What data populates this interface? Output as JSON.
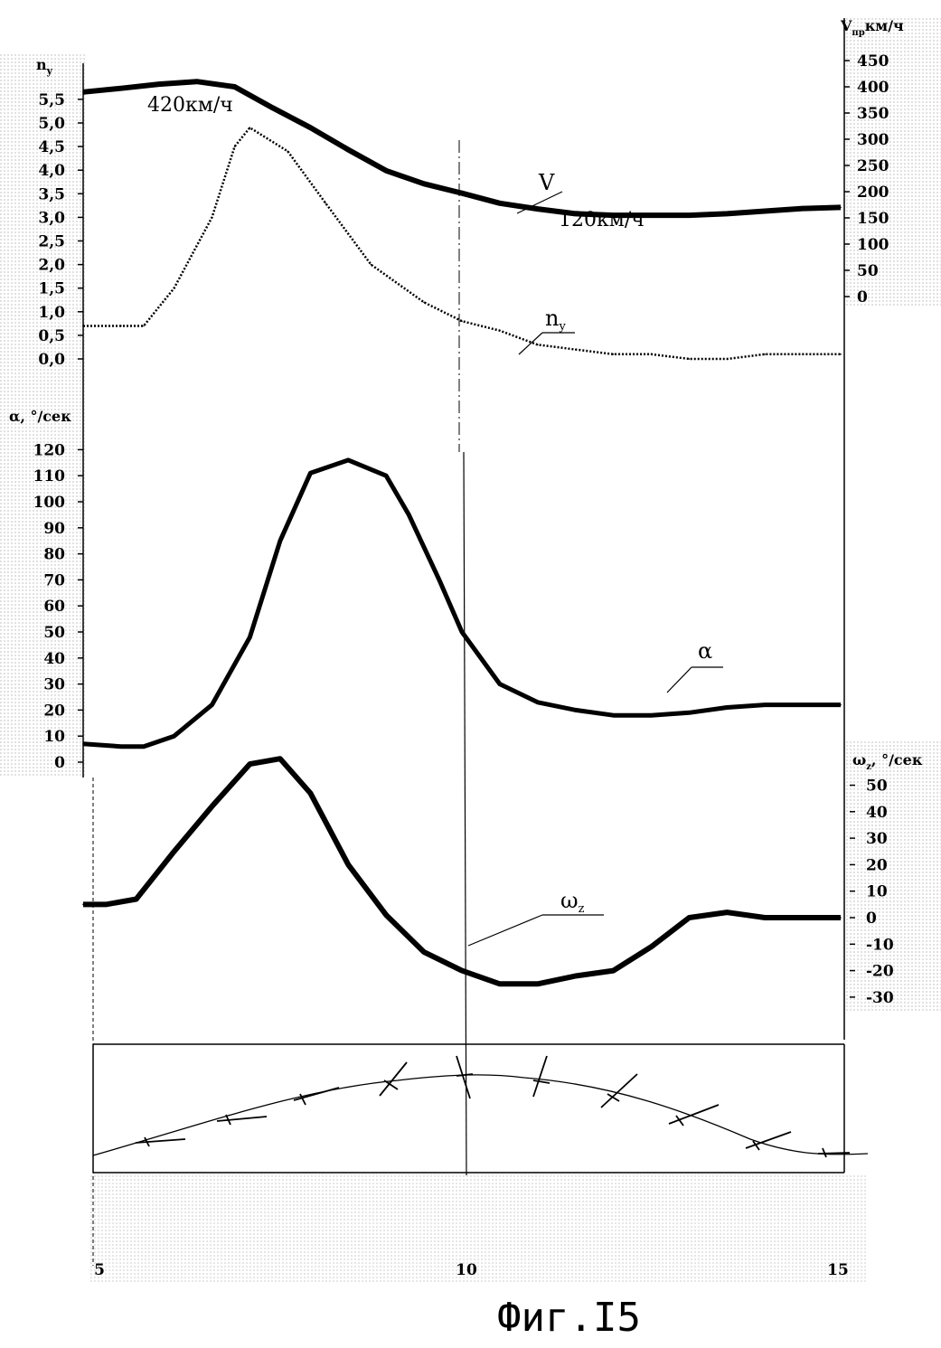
{
  "figure": {
    "caption": "Фиг.I5"
  },
  "chart_data": [
    {
      "id": "top",
      "type": "line",
      "left_axis": {
        "title": "n",
        "subscript": "y",
        "ticks": [
          "5,5",
          "5,0",
          "4,5",
          "4,0",
          "3,5",
          "3,0",
          "2,5",
          "2,0",
          "1,5",
          "1,0",
          "0,5",
          "0,0"
        ],
        "range": [
          0.0,
          5.5
        ]
      },
      "right_axis": {
        "title": "V",
        "subscript": "пр",
        "unit": "км/ч",
        "ticks": [
          "450",
          "400",
          "350",
          "300",
          "250",
          "200",
          "150",
          "100",
          "50",
          "0"
        ],
        "range": [
          0,
          450
        ]
      },
      "series": [
        {
          "name": "V",
          "label": "V",
          "axis": "right",
          "style": "thick",
          "x": [
            5.0,
            5.5,
            6.0,
            6.5,
            7.0,
            7.5,
            8.0,
            8.5,
            9.0,
            9.5,
            10.0,
            10.5,
            11.0,
            11.5,
            12.0,
            12.5,
            13.0,
            13.5,
            14.0,
            14.5,
            15.0
          ],
          "values": [
            390,
            397,
            405,
            410,
            400,
            360,
            322,
            280,
            240,
            215,
            197,
            178,
            167,
            158,
            155,
            155,
            155,
            158,
            163,
            168,
            170
          ]
        },
        {
          "name": "n_y",
          "label": "n",
          "label_subscript": "y",
          "axis": "left",
          "style": "dotted",
          "x": [
            5.0,
            5.5,
            5.8,
            6.2,
            6.7,
            7.0,
            7.2,
            7.7,
            8.2,
            8.8,
            9.5,
            10.0,
            10.5,
            11.0,
            11.5,
            12.0,
            12.5,
            13.0,
            13.5,
            14.0,
            14.5,
            15.0
          ],
          "values": [
            0.7,
            0.7,
            0.7,
            1.5,
            3.0,
            4.5,
            4.9,
            4.4,
            3.3,
            2.0,
            1.2,
            0.8,
            0.6,
            0.3,
            0.2,
            0.1,
            0.1,
            0.0,
            0.0,
            0.1,
            0.1,
            0.1
          ]
        }
      ],
      "annotations": [
        "420км/ч",
        "120км/ч"
      ]
    },
    {
      "id": "alpha",
      "type": "line",
      "left_axis": {
        "title": "α, °/сек",
        "ticks": [
          "120",
          "110",
          "100",
          "90",
          "80",
          "70",
          "60",
          "50",
          "40",
          "30",
          "20",
          "10",
          "0"
        ],
        "range": [
          0,
          120
        ]
      },
      "series": [
        {
          "name": "α",
          "label": "α",
          "style": "thick",
          "x": [
            5.0,
            5.5,
            5.8,
            6.2,
            6.7,
            7.2,
            7.6,
            8.0,
            8.5,
            9.0,
            9.3,
            9.7,
            10.0,
            10.5,
            11.0,
            11.5,
            12.0,
            12.5,
            13.0,
            13.5,
            14.0,
            14.5,
            15.0
          ],
          "values": [
            7,
            6,
            6,
            10,
            22,
            48,
            85,
            111,
            116,
            110,
            95,
            70,
            50,
            30,
            23,
            20,
            18,
            18,
            19,
            21,
            22,
            22,
            22
          ]
        }
      ]
    },
    {
      "id": "omega",
      "type": "line",
      "right_axis": {
        "title": "ω",
        "subscript": "z",
        "unit": ", °/сек",
        "ticks": [
          "50",
          "40",
          "30",
          "20",
          "10",
          "0",
          "-10",
          "-20",
          "-30"
        ],
        "range": [
          -30,
          50
        ]
      },
      "series": [
        {
          "name": "ω_z",
          "label": "ω",
          "label_subscript": "z",
          "style": "thick",
          "x": [
            5.0,
            5.3,
            5.7,
            6.2,
            6.7,
            7.2,
            7.6,
            8.0,
            8.5,
            9.0,
            9.5,
            10.0,
            10.5,
            11.0,
            11.5,
            12.0,
            12.5,
            13.0,
            13.5,
            14.0,
            14.5,
            15.0
          ],
          "values": [
            5,
            5,
            7,
            25,
            42,
            58,
            60,
            47,
            20,
            1,
            -13,
            -20,
            -25,
            -25,
            -22,
            -20,
            -11,
            0,
            2,
            0,
            0,
            0
          ]
        }
      ]
    }
  ],
  "time_axis": {
    "ticks": [
      "5",
      "10",
      "15"
    ],
    "range": [
      5,
      15
    ]
  }
}
